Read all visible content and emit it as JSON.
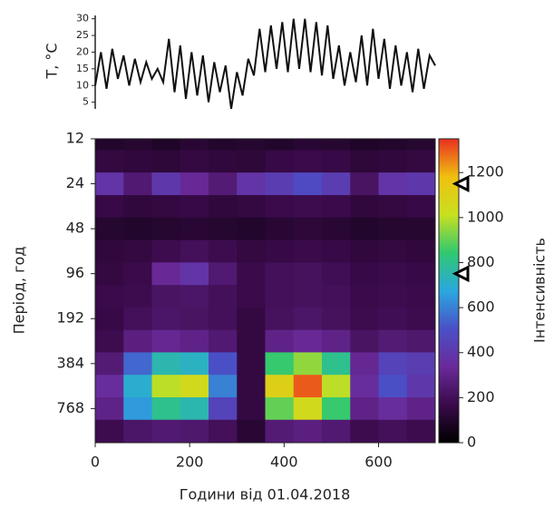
{
  "chart_data": [
    {
      "type": "line",
      "ylabel": "T, °C",
      "x": [
        0,
        12,
        24,
        36,
        48,
        60,
        72,
        84,
        96,
        108,
        120,
        132,
        144,
        156,
        168,
        180,
        192,
        204,
        216,
        228,
        240,
        252,
        264,
        276,
        288,
        300,
        312,
        324,
        336,
        348,
        360,
        372,
        384,
        396,
        408,
        420,
        432,
        444,
        456,
        468,
        480,
        492,
        504,
        516,
        528,
        540,
        552,
        564,
        576,
        588,
        600,
        612,
        624,
        636,
        648,
        660,
        672,
        684,
        696,
        708,
        720
      ],
      "values": [
        10,
        20,
        9,
        21,
        12,
        19,
        10,
        18,
        11,
        17,
        12,
        15,
        11,
        24,
        8,
        22,
        6,
        20,
        7,
        19,
        5,
        17,
        8,
        16,
        3,
        14,
        7,
        18,
        13,
        27,
        14,
        28,
        15,
        29,
        14,
        30,
        15,
        30,
        14,
        29,
        13,
        28,
        12,
        22,
        10,
        20,
        11,
        25,
        10,
        27,
        12,
        24,
        9,
        22,
        10,
        20,
        8,
        21,
        9,
        19,
        16
      ],
      "color": "#111111",
      "xlim": [
        0,
        720
      ],
      "ylim": [
        3,
        31
      ],
      "yticks": [
        5,
        10,
        15,
        20,
        25,
        30
      ]
    },
    {
      "type": "heatmap",
      "xlabel": "Години від 01.04.2018",
      "ylabel": "Період, год",
      "colorbar_label": "Інтенсивність",
      "x": [
        30,
        90,
        150,
        210,
        270,
        330,
        390,
        450,
        510,
        570,
        630,
        690
      ],
      "periods": [
        12,
        17,
        24,
        34,
        48,
        68,
        96,
        136,
        192,
        272,
        384,
        543,
        768,
        1086
      ],
      "z": [
        [
          100,
          110,
          90,
          120,
          100,
          110,
          100,
          120,
          110,
          90,
          100,
          110
        ],
        [
          150,
          140,
          130,
          150,
          140,
          130,
          160,
          170,
          160,
          130,
          140,
          150
        ],
        [
          380,
          250,
          400,
          330,
          260,
          380,
          420,
          480,
          420,
          220,
          380,
          400
        ],
        [
          160,
          140,
          150,
          160,
          140,
          150,
          170,
          180,
          170,
          140,
          150,
          160
        ],
        [
          110,
          100,
          110,
          120,
          110,
          100,
          120,
          130,
          120,
          100,
          110,
          110
        ],
        [
          140,
          150,
          180,
          200,
          180,
          150,
          160,
          170,
          160,
          140,
          150,
          140
        ],
        [
          150,
          170,
          330,
          380,
          250,
          170,
          200,
          210,
          190,
          160,
          170,
          160
        ],
        [
          170,
          180,
          220,
          230,
          200,
          170,
          200,
          210,
          200,
          170,
          180,
          170
        ],
        [
          160,
          200,
          230,
          220,
          200,
          150,
          210,
          230,
          210,
          180,
          190,
          180
        ],
        [
          180,
          280,
          320,
          300,
          250,
          150,
          300,
          330,
          300,
          220,
          260,
          240
        ],
        [
          260,
          550,
          750,
          720,
          500,
          150,
          850,
          950,
          800,
          320,
          450,
          420
        ],
        [
          350,
          700,
          1000,
          1050,
          600,
          150,
          1100,
          1300,
          1000,
          350,
          500,
          400
        ],
        [
          300,
          650,
          800,
          750,
          450,
          150,
          900,
          1050,
          850,
          300,
          350,
          300
        ],
        [
          180,
          230,
          250,
          240,
          200,
          120,
          260,
          280,
          250,
          180,
          200,
          180
        ]
      ],
      "colormap": [
        "#000000",
        "#3a0a4a",
        "#6a2a9a",
        "#4a50c8",
        "#2aa8e0",
        "#30c870",
        "#c8e020",
        "#f0c010",
        "#e83020"
      ],
      "xlim": [
        0,
        720
      ],
      "xticks": [
        0,
        200,
        400,
        600
      ],
      "ylim": [
        12,
        1300
      ],
      "yticks": [
        12,
        24,
        48,
        96,
        192,
        384,
        768
      ],
      "log_y": true,
      "clim": [
        0,
        1350
      ],
      "cticks": [
        0,
        200,
        400,
        600,
        800,
        1000,
        1200
      ],
      "period_markers": [
        24,
        96
      ]
    }
  ]
}
